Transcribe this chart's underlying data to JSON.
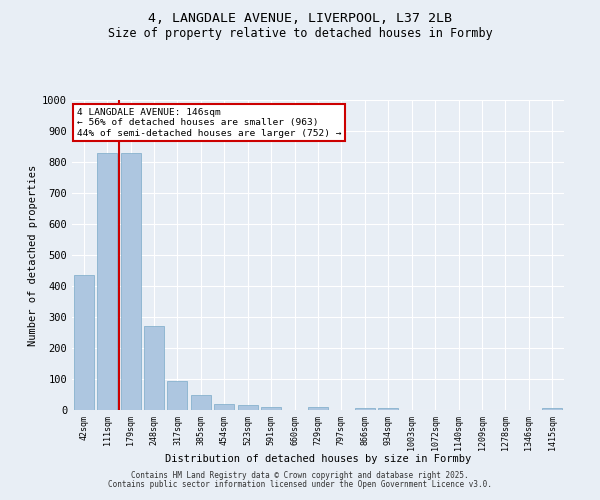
{
  "title_line1": "4, LANGDALE AVENUE, LIVERPOOL, L37 2LB",
  "title_line2": "Size of property relative to detached houses in Formby",
  "xlabel": "Distribution of detached houses by size in Formby",
  "ylabel": "Number of detached properties",
  "categories": [
    "42sqm",
    "111sqm",
    "179sqm",
    "248sqm",
    "317sqm",
    "385sqm",
    "454sqm",
    "523sqm",
    "591sqm",
    "660sqm",
    "729sqm",
    "797sqm",
    "866sqm",
    "934sqm",
    "1003sqm",
    "1072sqm",
    "1140sqm",
    "1209sqm",
    "1278sqm",
    "1346sqm",
    "1415sqm"
  ],
  "values": [
    437,
    830,
    830,
    270,
    95,
    47,
    20,
    15,
    10,
    0,
    10,
    0,
    5,
    5,
    0,
    0,
    0,
    0,
    0,
    0,
    8
  ],
  "bar_color": "#adc6e0",
  "bar_edge_color": "#7aaac8",
  "vline_x": 1.5,
  "vline_color": "#cc0000",
  "annotation_text": "4 LANGDALE AVENUE: 146sqm\n← 56% of detached houses are smaller (963)\n44% of semi-detached houses are larger (752) →",
  "annotation_box_color": "#ffffff",
  "annotation_box_edge": "#cc0000",
  "ylim": [
    0,
    1000
  ],
  "yticks": [
    0,
    100,
    200,
    300,
    400,
    500,
    600,
    700,
    800,
    900,
    1000
  ],
  "bg_color": "#e8eef5",
  "grid_color": "#ffffff",
  "footer_line1": "Contains HM Land Registry data © Crown copyright and database right 2025.",
  "footer_line2": "Contains public sector information licensed under the Open Government Licence v3.0."
}
